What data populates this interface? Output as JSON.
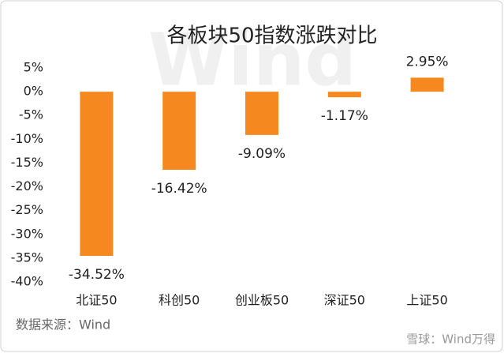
{
  "chart_data": {
    "type": "bar",
    "title": "各板块50指数涨跌对比",
    "categories": [
      "北证50",
      "科创50",
      "创业板50",
      "深证50",
      "上证50"
    ],
    "values": [
      -34.52,
      -16.42,
      -9.09,
      -1.17,
      2.95
    ],
    "value_labels": [
      "-34.52%",
      "-16.42%",
      "-9.09%",
      "-1.17%",
      "2.95%"
    ],
    "color": "#f5891f",
    "ylim": [
      -40,
      5
    ],
    "yticks": [
      {
        "value": 5,
        "label": "5%"
      },
      {
        "value": 0,
        "label": "0%"
      },
      {
        "value": -5,
        "label": "-5%"
      },
      {
        "value": -10,
        "label": "-10%"
      },
      {
        "value": -15,
        "label": "-15%"
      },
      {
        "value": -20,
        "label": "-20%"
      },
      {
        "value": -25,
        "label": "-25%"
      },
      {
        "value": -30,
        "label": "-30%"
      },
      {
        "value": -35,
        "label": "-35%"
      },
      {
        "value": -40,
        "label": "-40%"
      }
    ],
    "grid": false,
    "source": "数据来源：Wind",
    "watermark": "Wind",
    "credit": "雪球：Wind万得"
  }
}
